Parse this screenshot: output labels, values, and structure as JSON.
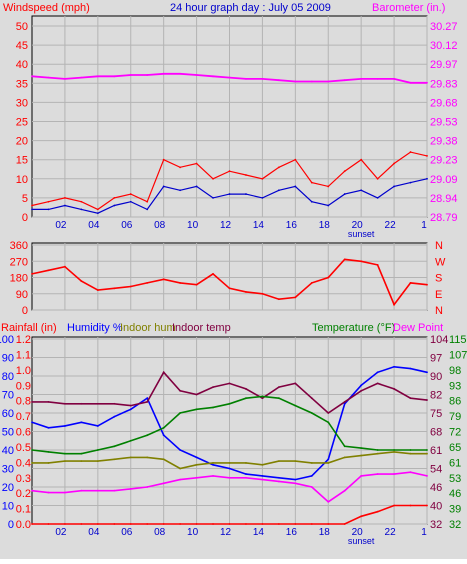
{
  "header": {
    "left_title": "Windspeed (mph)",
    "center_title": "24 hour graph day : July 05 2009",
    "right_title": "Barometer (in.)"
  },
  "colors": {
    "background": "#dcdcdc",
    "plot_area": "#dcdcdc",
    "grid": "#b4b4b4",
    "wind_gust": "#ff0000",
    "wind_avg": "#0000cc",
    "barometer": "#ff00ff",
    "direction": "#ff0000",
    "rainfall": "#ff0000",
    "humidity": "#0000ff",
    "indoor_hum": "#808000",
    "indoor_temp": "#800040",
    "temperature": "#008000",
    "dew_point": "#ff00ff"
  },
  "chart_data": [
    {
      "type": "line",
      "name_key": "wind_baro",
      "title": "24 hour graph day : July 05 2009",
      "ylabel_left": "Windspeed (mph)",
      "ylabel_right": "Barometer (in.)",
      "x_ticks": [
        "02",
        "04",
        "06",
        "08",
        "10",
        "12",
        "14",
        "16",
        "18",
        "20",
        "22",
        "1"
      ],
      "x_extra_label": "sunset",
      "ylim_left": [
        0,
        50
      ],
      "yticks_left": [
        "0",
        "5",
        "10",
        "15",
        "20",
        "25",
        "30",
        "35",
        "40",
        "45",
        "50"
      ],
      "ylim_right": [
        28.79,
        30.27
      ],
      "yticks_right": [
        "28.79",
        "28.94",
        "29.09",
        "29.23",
        "29.38",
        "29.53",
        "29.68",
        "29.83",
        "29.97",
        "30.12",
        "30.27"
      ],
      "x_hours": [
        0,
        1,
        2,
        3,
        4,
        5,
        6,
        7,
        8,
        9,
        10,
        11,
        12,
        13,
        14,
        15,
        16,
        17,
        18,
        19,
        20,
        21,
        22,
        23,
        24
      ],
      "series": [
        {
          "key": "gust",
          "axis": "left",
          "values": [
            3,
            4,
            5,
            4,
            2,
            5,
            6,
            4,
            15,
            13,
            14,
            10,
            12,
            11,
            10,
            13,
            15,
            9,
            8,
            12,
            15,
            10,
            14,
            17,
            16
          ]
        },
        {
          "key": "avg",
          "axis": "left",
          "values": [
            2,
            2,
            3,
            2,
            1,
            3,
            4,
            2,
            8,
            7,
            8,
            5,
            6,
            6,
            5,
            7,
            8,
            4,
            3,
            6,
            7,
            5,
            8,
            9,
            10
          ]
        },
        {
          "key": "barometer",
          "axis": "right",
          "values": [
            29.88,
            29.87,
            29.86,
            29.87,
            29.88,
            29.88,
            29.89,
            29.89,
            29.9,
            29.9,
            29.89,
            29.88,
            29.87,
            29.86,
            29.86,
            29.85,
            29.84,
            29.84,
            29.84,
            29.85,
            29.86,
            29.86,
            29.86,
            29.83,
            29.83
          ]
        }
      ]
    },
    {
      "type": "line",
      "name_key": "direction",
      "ylim": [
        0,
        360
      ],
      "yticks_left": [
        "0",
        "90",
        "180",
        "270",
        "360"
      ],
      "yticks_right": [
        "N",
        "E",
        "S",
        "W",
        "N"
      ],
      "x_hours": [
        0,
        1,
        2,
        3,
        4,
        5,
        6,
        7,
        8,
        9,
        10,
        11,
        12,
        13,
        14,
        15,
        16,
        17,
        18,
        19,
        20,
        21,
        22,
        23,
        24
      ],
      "values": [
        200,
        220,
        240,
        160,
        110,
        120,
        130,
        150,
        170,
        150,
        140,
        200,
        120,
        100,
        90,
        60,
        70,
        150,
        180,
        280,
        270,
        250,
        30,
        150,
        140
      ]
    },
    {
      "type": "line",
      "name_key": "rain_hum_temp",
      "labels": {
        "rainfall": "Rainfall (in)",
        "humidity": "Humidity %",
        "indoor_hum": "Indoor hum",
        "indoor_temp": "Indoor temp",
        "temperature": "Temperature (°F)",
        "dew_point": "Dew Point"
      },
      "x_ticks": [
        "02",
        "04",
        "06",
        "08",
        "10",
        "12",
        "14",
        "16",
        "18",
        "20",
        "22",
        "1"
      ],
      "x_extra_label": "sunset",
      "yticks_hum": [
        "0",
        "10",
        "20",
        "30",
        "40",
        "50",
        "60",
        "70",
        "80",
        "90",
        "100"
      ],
      "yticks_rain": [
        "0.0",
        "0.1",
        "0.2",
        "0.3",
        "0.4",
        "0.5",
        "0.6",
        "0.7",
        "0.8",
        "0.9",
        "1.0",
        "1.1",
        "1.2"
      ],
      "yticks_r1": [
        "32",
        "40",
        "46",
        "54",
        "61",
        "68",
        "75",
        "82",
        "90",
        "97",
        "104"
      ],
      "yticks_r2": [
        "32",
        "39",
        "46",
        "53",
        "61",
        "65",
        "72",
        "79",
        "86",
        "93",
        "98",
        "107",
        "115"
      ],
      "x_hours": [
        0,
        1,
        2,
        3,
        4,
        5,
        6,
        7,
        8,
        9,
        10,
        11,
        12,
        13,
        14,
        15,
        16,
        17,
        18,
        19,
        20,
        21,
        22,
        23,
        24
      ],
      "series": [
        {
          "key": "humidity",
          "scale": "pct",
          "values": [
            55,
            52,
            53,
            55,
            53,
            58,
            62,
            68,
            48,
            40,
            36,
            32,
            30,
            27,
            26,
            25,
            24,
            26,
            35,
            65,
            75,
            82,
            85,
            84,
            82
          ]
        },
        {
          "key": "indoor_hum",
          "scale": "pct",
          "values": [
            33,
            33,
            34,
            34,
            34,
            35,
            36,
            36,
            35,
            30,
            32,
            33,
            33,
            33,
            32,
            34,
            34,
            33,
            33,
            36,
            37,
            38,
            39,
            38,
            38
          ]
        },
        {
          "key": "indoor_temp",
          "scale": "pct",
          "values": [
            66,
            66,
            65,
            65,
            65,
            65,
            64,
            66,
            82,
            72,
            70,
            74,
            76,
            73,
            68,
            74,
            76,
            68,
            60,
            66,
            72,
            76,
            73,
            68,
            67
          ]
        },
        {
          "key": "temperature",
          "scale": "pct",
          "values": [
            40,
            39,
            38,
            38,
            40,
            42,
            45,
            48,
            52,
            60,
            62,
            63,
            65,
            68,
            69,
            68,
            64,
            60,
            55,
            42,
            41,
            40,
            40,
            40,
            40
          ]
        },
        {
          "key": "dew_point",
          "scale": "pct",
          "values": [
            18,
            17,
            17,
            18,
            18,
            18,
            19,
            20,
            22,
            24,
            25,
            26,
            25,
            25,
            24,
            23,
            22,
            20,
            12,
            18,
            26,
            27,
            27,
            28,
            26
          ]
        },
        {
          "key": "rainfall",
          "scale": "rain",
          "values": [
            0,
            0,
            0,
            0,
            0,
            0,
            0,
            0,
            0,
            0,
            0,
            0,
            0,
            0,
            0,
            0,
            0,
            0,
            0,
            0,
            0.05,
            0.08,
            0.12,
            0.12,
            0.12
          ]
        }
      ]
    }
  ]
}
